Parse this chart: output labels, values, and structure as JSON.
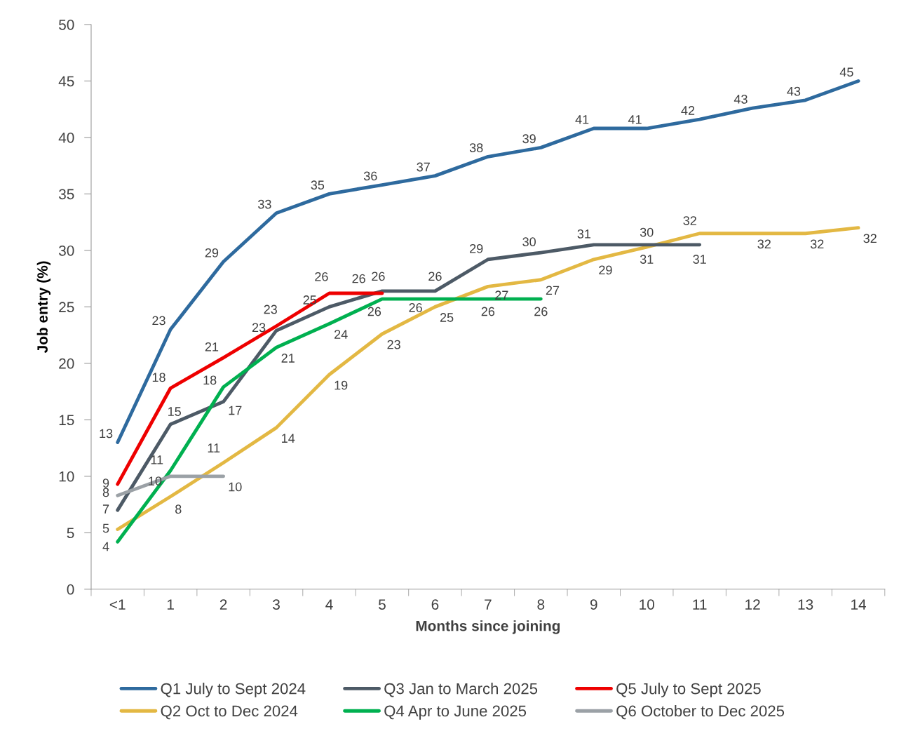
{
  "chart_data": {
    "type": "line",
    "xlabel": "Months since joining",
    "ylabel": "Job entry (%)",
    "categories": [
      "<1",
      "1",
      "2",
      "3",
      "4",
      "5",
      "6",
      "7",
      "8",
      "9",
      "10",
      "11",
      "12",
      "13",
      "14"
    ],
    "ylim": [
      0,
      50
    ],
    "yticks": [
      0,
      5,
      10,
      15,
      20,
      25,
      30,
      35,
      40,
      45,
      50
    ],
    "grid": false,
    "legend": "bottom",
    "marker": "none",
    "line_style": "solid",
    "series": [
      {
        "name": "Q1 July to Sept 2024",
        "color": "#2e6a9e",
        "values": [
          13,
          23,
          29,
          33.3,
          35,
          35.8,
          36.6,
          38.3,
          39.1,
          40.8,
          40.8,
          41.6,
          42.6,
          43.3,
          45
        ],
        "value_labels": [
          "13",
          "23",
          "29",
          "33",
          "35",
          "36",
          "37",
          "38",
          "39",
          "41",
          "41",
          "42",
          "43",
          "43",
          "45"
        ]
      },
      {
        "name": "Q2 Oct to Dec 2024",
        "color": "#e3b843",
        "values": [
          5.3,
          8.2,
          11.2,
          14.3,
          19,
          22.6,
          25,
          26.8,
          27.4,
          29.2,
          30.3,
          31.5,
          31.5,
          31.5,
          32
        ],
        "value_labels": [
          "5",
          "8",
          "11",
          "14",
          "19",
          "23",
          "25",
          "27",
          "27",
          "29",
          "30",
          "32",
          "32",
          "32",
          "32"
        ]
      },
      {
        "name": "Q3 Jan to March 2025",
        "color": "#4d5a66",
        "values": [
          7,
          14.6,
          16.6,
          22.9,
          25,
          26.4,
          26.4,
          29.2,
          29.8,
          30.5,
          30.5,
          30.5,
          null,
          null,
          null
        ],
        "value_labels": [
          "7",
          "15",
          "17",
          "23",
          "25",
          "26",
          "26",
          "29",
          "30",
          "31",
          "31",
          "31",
          null,
          null,
          null
        ]
      },
      {
        "name": "Q4 Apr to June 2025",
        "color": "#00b050",
        "values": [
          4.2,
          10.5,
          17.9,
          21.4,
          23.5,
          25.7,
          25.7,
          25.7,
          25.7,
          null,
          null,
          null,
          null,
          null,
          null
        ],
        "value_labels": [
          "4",
          "11",
          "18",
          "21",
          "24",
          "26",
          "26",
          "26",
          "26",
          null,
          null,
          null,
          null,
          null,
          null
        ]
      },
      {
        "name": "Q5 July to Sept 2025",
        "color": "#ee0000",
        "values": [
          9.3,
          17.8,
          20.5,
          23.3,
          26.2,
          26.2,
          null,
          null,
          null,
          null,
          null,
          null,
          null,
          null,
          null
        ],
        "value_labels": [
          "9",
          "18",
          "21",
          "23",
          "26",
          "26",
          null,
          null,
          null,
          null,
          null,
          null,
          null,
          null,
          null
        ]
      },
      {
        "name": "Q6 October to Dec 2025",
        "color": "#9ba1a6",
        "values": [
          8.3,
          10,
          10,
          null,
          null,
          null,
          null,
          null,
          null,
          null,
          null,
          null,
          null,
          null,
          null
        ],
        "value_labels": [
          "8",
          "10",
          "10",
          null,
          null,
          null,
          null,
          null,
          null,
          null,
          null,
          null,
          null,
          null,
          null
        ]
      }
    ]
  }
}
